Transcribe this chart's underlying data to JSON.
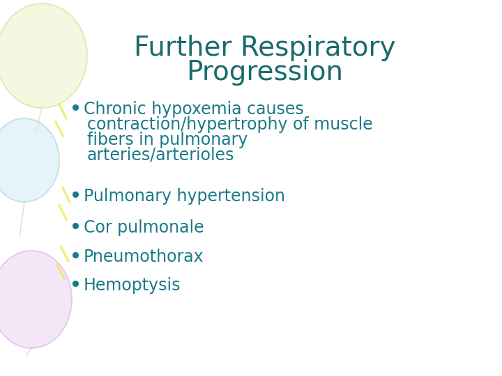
{
  "title_line1": "Further Respiratory",
  "title_line2": "Progression",
  "title_color": "#1a6b6b",
  "title_fontsize": 28,
  "bullet_color": "#1a7a8a",
  "bullet_fontsize": 17,
  "background_color": "#ffffff",
  "bullets": [
    "Chronic hypoxemia causes\ncontraction/hypertrophy of muscle\nfibers in pulmonary\narteries/arterioles",
    "Pulmonary hypertension",
    "Cor pulmonale",
    "Pneumothorax",
    "Hemoptysis"
  ],
  "balloon_colors": [
    {
      "fill": "#e8f5c8",
      "edge": "#c8e090"
    },
    {
      "fill": "#c8e8f5",
      "edge": "#90c8d8"
    },
    {
      "fill": "#e8d0f0",
      "edge": "#d0a8e0"
    }
  ],
  "yellow_color": "#f0e860"
}
